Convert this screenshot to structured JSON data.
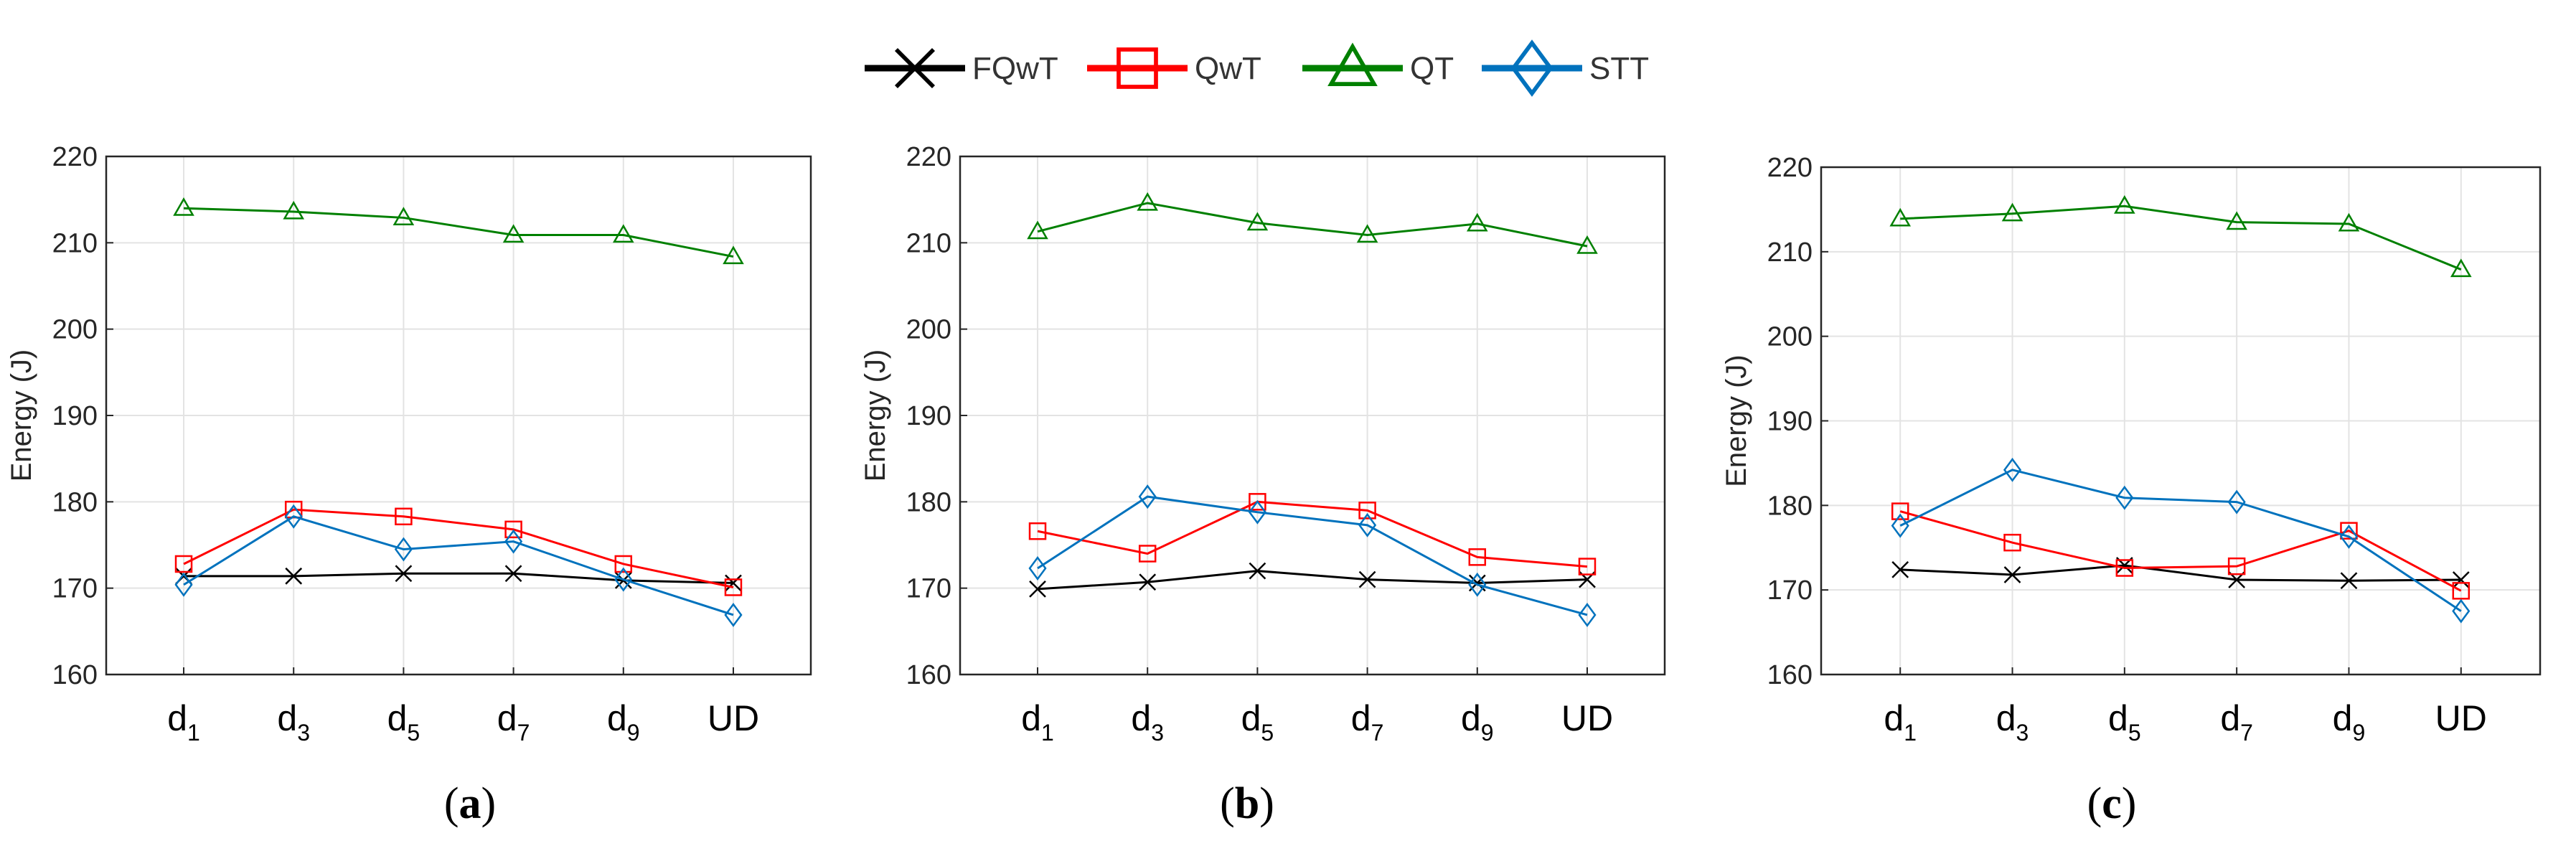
{
  "legend": [
    {
      "label": "FQwT",
      "color": "#000000",
      "marker": "x"
    },
    {
      "label": "QwT",
      "color": "#ff0000",
      "marker": "square"
    },
    {
      "label": "QT",
      "color": "#008000",
      "marker": "triangle"
    },
    {
      "label": "STT",
      "color": "#0072bd",
      "marker": "diamond"
    }
  ],
  "chart_data": [
    {
      "type": "line",
      "caption": "a",
      "ylabel": "Energy (J)",
      "xlabel": "",
      "categories": [
        "d1",
        "d3",
        "d5",
        "d7",
        "d9",
        "UD"
      ],
      "category_labels": [
        {
          "base": "d",
          "sub": "1"
        },
        {
          "base": "d",
          "sub": "3"
        },
        {
          "base": "d",
          "sub": "5"
        },
        {
          "base": "d",
          "sub": "7"
        },
        {
          "base": "d",
          "sub": "9"
        },
        {
          "base": "UD",
          "sub": ""
        }
      ],
      "ylim": [
        160,
        220
      ],
      "yticks": [
        160,
        170,
        180,
        190,
        200,
        210,
        220
      ],
      "grid": true,
      "series": [
        {
          "name": "FQwT",
          "values": [
            171.4,
            171.4,
            171.7,
            171.7,
            170.9,
            170.6
          ]
        },
        {
          "name": "QwT",
          "values": [
            172.8,
            179.1,
            178.3,
            176.8,
            172.8,
            170.1
          ]
        },
        {
          "name": "QT",
          "values": [
            214.0,
            213.6,
            212.9,
            210.9,
            210.9,
            208.4
          ]
        },
        {
          "name": "STT",
          "values": [
            170.4,
            178.3,
            174.5,
            175.4,
            171.0,
            166.9
          ]
        }
      ]
    },
    {
      "type": "line",
      "caption": "b",
      "ylabel": "Energy (J)",
      "xlabel": "",
      "categories": [
        "d1",
        "d3",
        "d5",
        "d7",
        "d9",
        "UD"
      ],
      "category_labels": [
        {
          "base": "d",
          "sub": "1"
        },
        {
          "base": "d",
          "sub": "3"
        },
        {
          "base": "d",
          "sub": "5"
        },
        {
          "base": "d",
          "sub": "7"
        },
        {
          "base": "d",
          "sub": "9"
        },
        {
          "base": "UD",
          "sub": ""
        }
      ],
      "ylim": [
        160,
        220
      ],
      "yticks": [
        160,
        170,
        180,
        190,
        200,
        210,
        220
      ],
      "grid": true,
      "series": [
        {
          "name": "FQwT",
          "values": [
            169.9,
            170.7,
            172.0,
            171.0,
            170.6,
            171.0
          ]
        },
        {
          "name": "QwT",
          "values": [
            176.6,
            174.0,
            180.0,
            179.0,
            173.6,
            172.5
          ]
        },
        {
          "name": "QT",
          "values": [
            211.3,
            214.6,
            212.3,
            210.9,
            212.2,
            209.6
          ]
        },
        {
          "name": "STT",
          "values": [
            172.3,
            180.6,
            178.8,
            177.3,
            170.4,
            166.9
          ]
        }
      ]
    },
    {
      "type": "line",
      "caption": "c",
      "ylabel": "Energy (J)",
      "xlabel": "",
      "categories": [
        "d1",
        "d3",
        "d5",
        "d7",
        "d9",
        "UD"
      ],
      "category_labels": [
        {
          "base": "d",
          "sub": "1"
        },
        {
          "base": "d",
          "sub": "3"
        },
        {
          "base": "d",
          "sub": "5"
        },
        {
          "base": "d",
          "sub": "7"
        },
        {
          "base": "d",
          "sub": "9"
        },
        {
          "base": "UD",
          "sub": ""
        }
      ],
      "ylim": [
        160,
        220
      ],
      "yticks": [
        160,
        170,
        180,
        190,
        200,
        210,
        220
      ],
      "grid": true,
      "series": [
        {
          "name": "FQwT",
          "values": [
            172.4,
            171.8,
            172.9,
            171.2,
            171.1,
            171.2
          ]
        },
        {
          "name": "QwT",
          "values": [
            179.3,
            175.6,
            172.6,
            172.8,
            177.0,
            169.9
          ]
        },
        {
          "name": "QT",
          "values": [
            213.9,
            214.5,
            215.4,
            213.5,
            213.3,
            207.9
          ]
        },
        {
          "name": "STT",
          "values": [
            177.6,
            184.2,
            180.9,
            180.4,
            176.3,
            167.5
          ]
        }
      ]
    }
  ]
}
